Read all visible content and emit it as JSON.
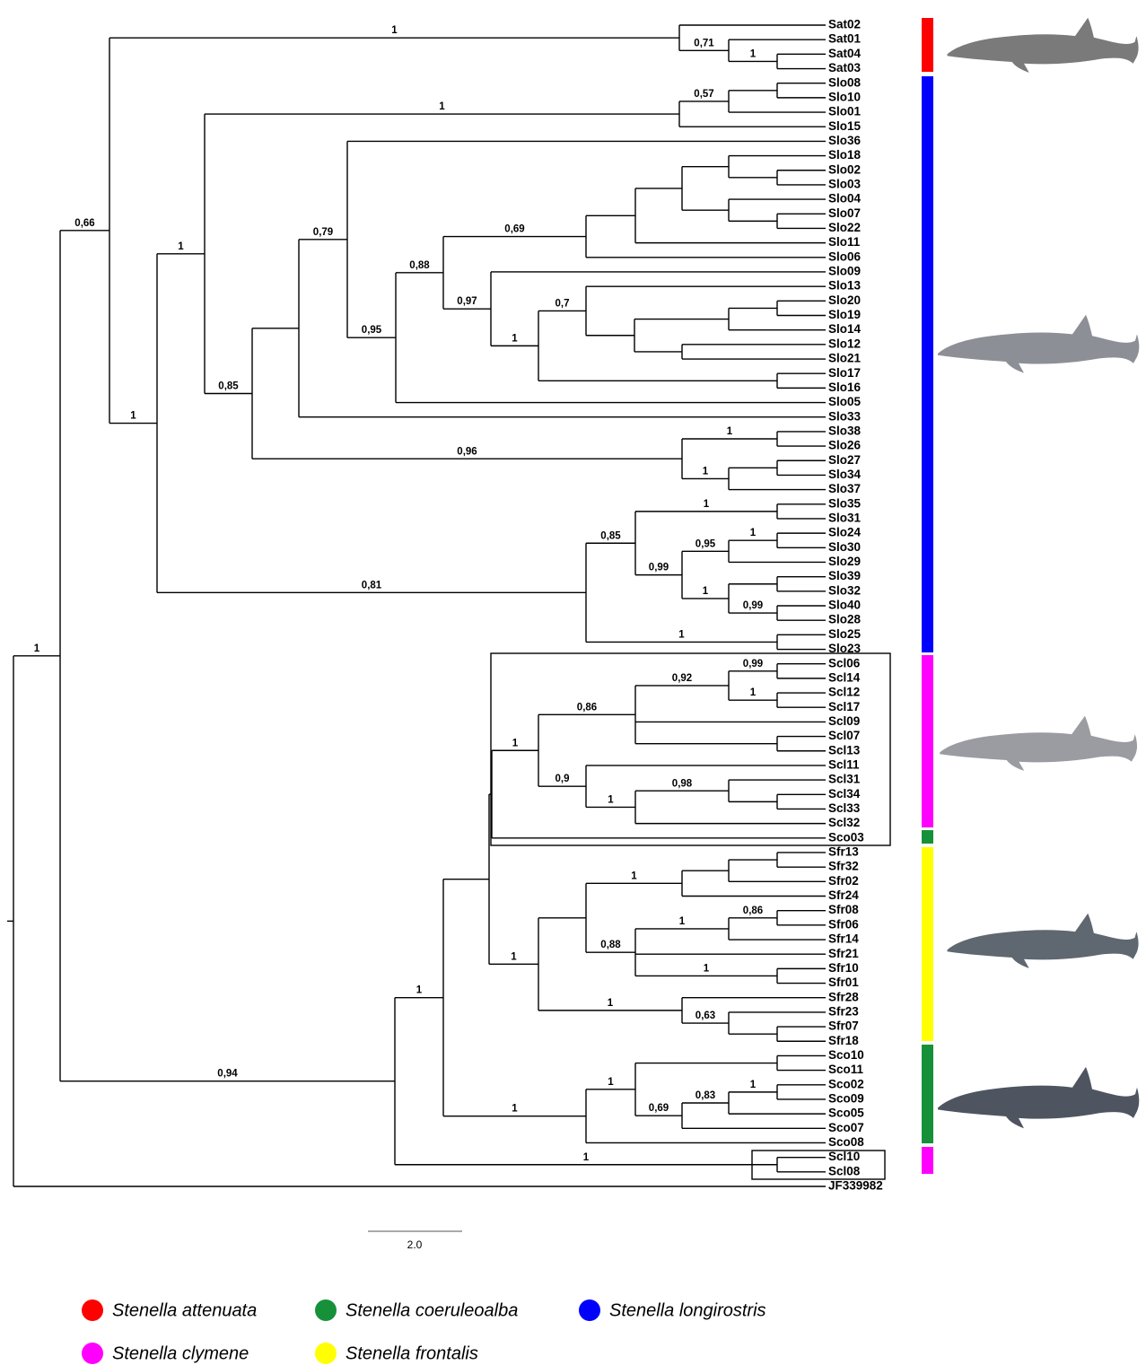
{
  "leaves": [
    "Sat02",
    "Sat01",
    "Sat04",
    "Sat03",
    "Slo08",
    "Slo10",
    "Slo01",
    "Slo15",
    "Slo36",
    "Slo18",
    "Slo02",
    "Slo03",
    "Slo04",
    "Slo07",
    "Slo22",
    "Slo11",
    "Slo06",
    "Slo09",
    "Slo13",
    "Slo20",
    "Slo19",
    "Slo14",
    "Slo12",
    "Slo21",
    "Slo17",
    "Slo16",
    "Slo05",
    "Slo33",
    "Slo38",
    "Slo26",
    "Slo27",
    "Slo34",
    "Slo37",
    "Slo35",
    "Slo31",
    "Slo24",
    "Slo30",
    "Slo29",
    "Slo39",
    "Slo32",
    "Slo40",
    "Slo28",
    "Slo25",
    "Slo23",
    "Scl06",
    "Scl14",
    "Scl12",
    "Scl17",
    "Scl09",
    "Scl07",
    "Scl13",
    "Scl11",
    "Scl31",
    "Scl34",
    "Scl33",
    "Scl32",
    "Sco03",
    "Sfr13",
    "Sfr32",
    "Sfr02",
    "Sfr24",
    "Sfr08",
    "Sfr06",
    "Sfr14",
    "Sfr21",
    "Sfr10",
    "Sfr01",
    "Sfr28",
    "Sfr23",
    "Sfr07",
    "Sfr18",
    "Sco10",
    "Sco11",
    "Sco02",
    "Sco09",
    "Sco05",
    "Sco07",
    "Sco08",
    "Scl10",
    "Scl08",
    "JF339982"
  ],
  "support_values": [
    "1",
    "0,66",
    "1",
    "0,71",
    "1",
    "1",
    "1",
    "1",
    "0,57",
    "0,85",
    "0,79",
    "0,95",
    "0,88",
    "0,69",
    "0,97",
    "1",
    "0,7",
    "0,96",
    "1",
    "1",
    "0,81",
    "0,85",
    "1",
    "0,99",
    "0,95",
    "1",
    "1",
    "0,99",
    "1",
    "0,94",
    "1",
    "1",
    "0,86",
    "0,92",
    "0,99",
    "1",
    "0,9",
    "1",
    "0,98",
    "1",
    "1",
    "0,88",
    "1",
    "0,86",
    "1",
    "1",
    "0,63",
    "1",
    "1",
    "0,69",
    "0,83",
    "1",
    "1"
  ],
  "scale_bar": {
    "label": "2.0"
  },
  "legend": [
    {
      "label": "Stenella attenuata",
      "color": "#ff0000"
    },
    {
      "label": "Stenella coeruleoalba",
      "color": "#16913a"
    },
    {
      "label": "Stenella longirostris",
      "color": "#0000ff"
    },
    {
      "label": "Stenella clymene",
      "color": "#ff00ff"
    },
    {
      "label": "Stenella frontalis",
      "color": "#ffff00"
    }
  ]
}
